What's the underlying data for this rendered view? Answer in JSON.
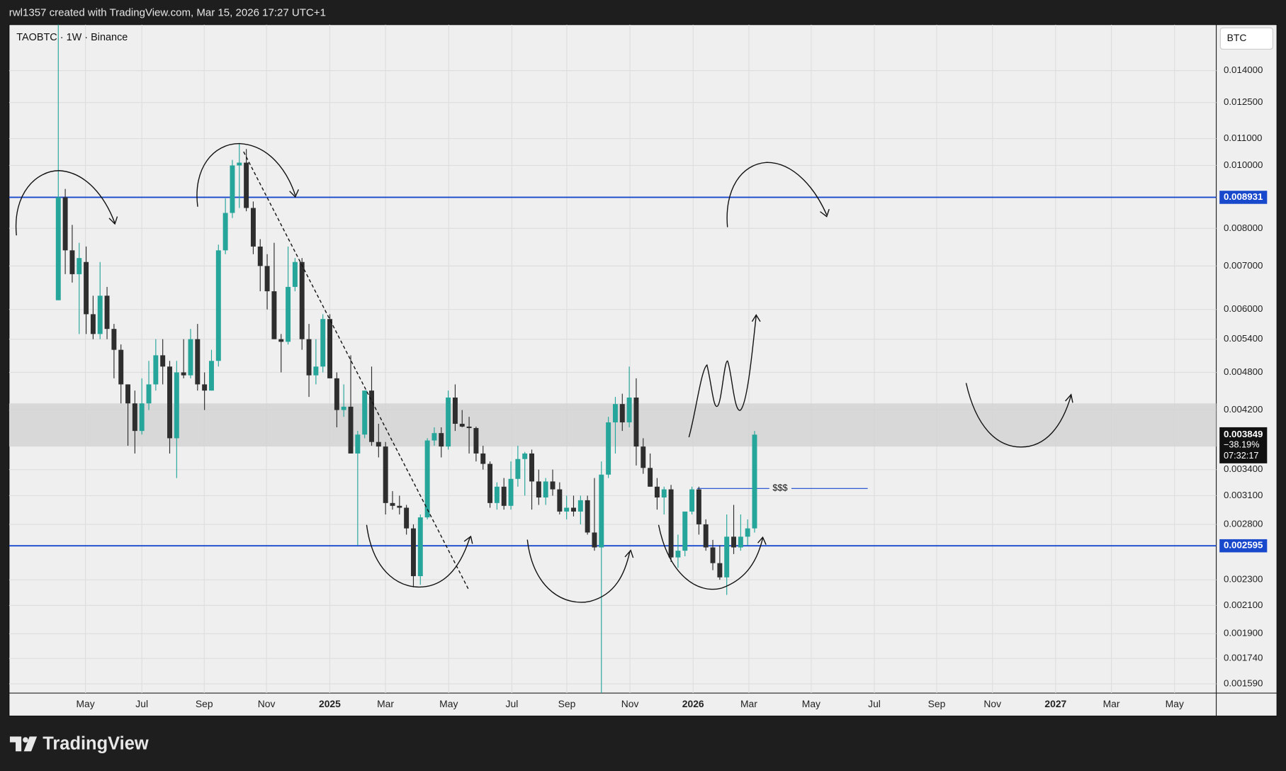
{
  "header": "rwl1357 created with TradingView.com, Mar 15, 2026 17:27 UTC+1",
  "footer": "TradingView",
  "chart_data": {
    "type": "candlestick",
    "title": "TAOBTC · 1W · Binance",
    "currency": "BTC",
    "log_scale": true,
    "grid": true,
    "colors": {
      "up": "#26a69a",
      "down": "#2e2e2e"
    },
    "open": [
      0.0062,
      0.00893,
      0.0074,
      0.0068,
      0.0071,
      0.0059,
      0.0055,
      0.0063,
      0.0056,
      0.0052,
      0.0046,
      0.0043,
      0.0039,
      0.0043,
      0.0046,
      0.0051,
      0.0049,
      0.0038,
      0.0048,
      0.00475,
      0.0054,
      0.0046,
      0.0045,
      0.005,
      0.0074,
      0.00845,
      0.01,
      0.0101,
      0.0086,
      0.0075,
      0.007,
      0.0064,
      0.0054,
      0.00535,
      0.0065,
      0.0071,
      0.0054,
      0.00475,
      0.0049,
      0.0058,
      0.0047,
      0.0042,
      0.00425,
      0.0036,
      0.00385,
      0.0045,
      0.00375,
      0.00369,
      0.00302,
      0.00299,
      0.00297,
      0.00276,
      0.00233,
      0.00287,
      0.00377,
      0.00387,
      0.00369,
      0.00439,
      0.004,
      0.00396,
      0.00394,
      0.0036,
      0.00347,
      0.00302,
      0.0032,
      0.00299,
      0.00329,
      0.00353,
      0.0036,
      0.00326,
      0.00308,
      0.00326,
      0.00317,
      0.00293,
      0.00297,
      0.00293,
      0.00305,
      0.00272,
      0.00258,
      0.00334,
      0.00402,
      0.00429,
      0.00402,
      0.00439,
      0.00369,
      0.00342,
      0.0032,
      0.00308,
      0.00317,
      0.00249,
      0.00255,
      0.00293,
      0.00317,
      0.0028,
      0.00258,
      0.00244,
      0.00232,
      0.00268,
      0.00258,
      0.00268,
      0.00276
    ],
    "high": [
      0.017,
      0.0092,
      0.0081,
      0.0076,
      0.0075,
      0.0063,
      0.0071,
      0.0065,
      0.0057,
      0.0053,
      0.0046,
      0.0045,
      0.0047,
      0.005,
      0.0054,
      0.0054,
      0.005,
      0.005,
      0.0054,
      0.0056,
      0.0057,
      0.0048,
      0.0052,
      0.00755,
      0.0089,
      0.0102,
      0.0108,
      0.0106,
      0.0088,
      0.0077,
      0.0073,
      0.0076,
      0.0055,
      0.0075,
      0.0072,
      0.0072,
      0.0057,
      0.0054,
      0.0059,
      0.0059,
      0.0048,
      0.0046,
      0.0051,
      0.0039,
      0.0045,
      0.0049,
      0.004,
      0.00375,
      0.00315,
      0.0031,
      0.003,
      0.0028,
      0.0029,
      0.0038,
      0.00395,
      0.00395,
      0.0045,
      0.0046,
      0.0042,
      0.0041,
      0.00396,
      0.0037,
      0.0035,
      0.00325,
      0.0033,
      0.0035,
      0.0037,
      0.00362,
      0.00365,
      0.0034,
      0.0033,
      0.0034,
      0.00325,
      0.0031,
      0.0031,
      0.0031,
      0.0031,
      0.0033,
      0.0035,
      0.0041,
      0.0044,
      0.00445,
      0.0049,
      0.0047,
      0.0038,
      0.0036,
      0.0033,
      0.0032,
      0.00322,
      0.0027,
      0.00285,
      0.0032,
      0.0032,
      0.00285,
      0.00265,
      0.0026,
      0.0029,
      0.003,
      0.0029,
      0.00285,
      0.0039
    ],
    "low": [
      0.0062,
      0.0068,
      0.0066,
      0.0055,
      0.0055,
      0.0054,
      0.0054,
      0.0054,
      0.0047,
      0.0043,
      0.0037,
      0.0036,
      0.00385,
      0.0042,
      0.0045,
      0.0046,
      0.0036,
      0.0033,
      0.0047,
      0.0047,
      0.0045,
      0.0042,
      0.0045,
      0.0049,
      0.0073,
      0.0083,
      0.0086,
      0.0085,
      0.0073,
      0.0064,
      0.006,
      0.0054,
      0.0048,
      0.0053,
      0.0064,
      0.0052,
      0.0044,
      0.0046,
      0.0048,
      0.0047,
      0.00395,
      0.0041,
      0.0036,
      0.0026,
      0.0038,
      0.0037,
      0.00355,
      0.0029,
      0.00295,
      0.0029,
      0.0027,
      0.00224,
      0.00226,
      0.00285,
      0.0037,
      0.00355,
      0.00365,
      0.0039,
      0.00395,
      0.0036,
      0.0035,
      0.0034,
      0.00297,
      0.00295,
      0.00295,
      0.00295,
      0.0032,
      0.0031,
      0.00295,
      0.003,
      0.003,
      0.0031,
      0.0029,
      0.00285,
      0.00288,
      0.0028,
      0.0027,
      0.00255,
      0.0015,
      0.0033,
      0.0036,
      0.0039,
      0.00395,
      0.00345,
      0.00335,
      0.0032,
      0.00295,
      0.0029,
      0.00245,
      0.0024,
      0.0025,
      0.0029,
      0.0027,
      0.00255,
      0.00238,
      0.0023,
      0.00218,
      0.00252,
      0.00255,
      0.0026,
      0.00272
    ],
    "close": [
      0.00893,
      0.0074,
      0.0068,
      0.0072,
      0.0059,
      0.0055,
      0.0063,
      0.0056,
      0.0052,
      0.0046,
      0.0043,
      0.0039,
      0.0043,
      0.0046,
      0.0051,
      0.0049,
      0.0038,
      0.0048,
      0.00475,
      0.0054,
      0.0046,
      0.0045,
      0.005,
      0.0074,
      0.00845,
      0.01,
      0.0101,
      0.0086,
      0.0075,
      0.007,
      0.0064,
      0.0054,
      0.00535,
      0.0065,
      0.0071,
      0.0054,
      0.00475,
      0.0049,
      0.0058,
      0.0047,
      0.0042,
      0.00425,
      0.0036,
      0.00385,
      0.0045,
      0.00375,
      0.00369,
      0.00302,
      0.00299,
      0.00297,
      0.00276,
      0.00233,
      0.00287,
      0.00377,
      0.00387,
      0.00369,
      0.00439,
      0.004,
      0.00396,
      0.00394,
      0.0036,
      0.00347,
      0.00302,
      0.0032,
      0.00299,
      0.00329,
      0.00353,
      0.0036,
      0.00326,
      0.00308,
      0.00326,
      0.00317,
      0.00293,
      0.00297,
      0.00293,
      0.00305,
      0.00272,
      0.00258,
      0.00334,
      0.00402,
      0.00429,
      0.00402,
      0.00439,
      0.00369,
      0.00342,
      0.0032,
      0.00308,
      0.00317,
      0.00249,
      0.00255,
      0.00293,
      0.00317,
      0.0028,
      0.00258,
      0.00244,
      0.00232,
      0.00268,
      0.00258,
      0.00268,
      0.00276,
      0.003849
    ],
    "ylim": [
      0.001539,
      0.01648
    ],
    "yticks": [
      {
        "value": 0.014,
        "label": "0.014000"
      },
      {
        "value": 0.0125,
        "label": "0.012500"
      },
      {
        "value": 0.011,
        "label": "0.011000"
      },
      {
        "value": 0.01,
        "label": "0.010000"
      },
      {
        "value": 0.008,
        "label": "0.008000"
      },
      {
        "value": 0.007,
        "label": "0.007000"
      },
      {
        "value": 0.006,
        "label": "0.006000"
      },
      {
        "value": 0.0054,
        "label": "0.005400"
      },
      {
        "value": 0.0048,
        "label": "0.004800"
      },
      {
        "value": 0.0042,
        "label": "0.004200"
      },
      {
        "value": 0.0034,
        "label": "0.003400"
      },
      {
        "value": 0.0031,
        "label": "0.003100"
      },
      {
        "value": 0.0028,
        "label": "0.002800"
      },
      {
        "value": 0.0023,
        "label": "0.002300"
      },
      {
        "value": 0.0021,
        "label": "0.002100"
      },
      {
        "value": 0.0019,
        "label": "0.001900"
      },
      {
        "value": 0.00174,
        "label": "0.001740"
      },
      {
        "value": 0.00159,
        "label": "0.001590"
      }
    ],
    "xlim": [
      -7.07,
      166.3
    ],
    "xticks": [
      {
        "value": 3.9,
        "label": "May"
      },
      {
        "value": 12.0,
        "label": "Jul"
      },
      {
        "value": 20.96,
        "label": "Sep"
      },
      {
        "value": 29.9,
        "label": "Nov"
      },
      {
        "value": 38.99,
        "label": "2025"
      },
      {
        "value": 46.99,
        "label": "Mar"
      },
      {
        "value": 56.07,
        "label": "May"
      },
      {
        "value": 65.14,
        "label": "Jul"
      },
      {
        "value": 73.03,
        "label": "Sep"
      },
      {
        "value": 82.1,
        "label": "Nov"
      },
      {
        "value": 91.17,
        "label": "2026"
      },
      {
        "value": 99.18,
        "label": "Mar"
      },
      {
        "value": 108.13,
        "label": "May"
      },
      {
        "value": 117.2,
        "label": "Jul"
      },
      {
        "value": 126.15,
        "label": "Sep"
      },
      {
        "value": 134.16,
        "label": "Nov"
      },
      {
        "value": 143.23,
        "label": "2027"
      },
      {
        "value": 151.24,
        "label": "Mar"
      },
      {
        "value": 160.31,
        "label": "May"
      }
    ],
    "hlines": [
      {
        "value": 0.008931,
        "color": "#1848cc"
      },
      {
        "value": 0.002595,
        "color": "#1848cc"
      }
    ],
    "zone": [
      0.00369,
      0.0043
    ],
    "zone_color": "#d4d4d4",
    "last_price_change": "−38.19%",
    "countdown": "07:32:17",
    "annotation": {
      "text": "$$$",
      "value": 0.00318,
      "color": "#1848cc"
    }
  }
}
